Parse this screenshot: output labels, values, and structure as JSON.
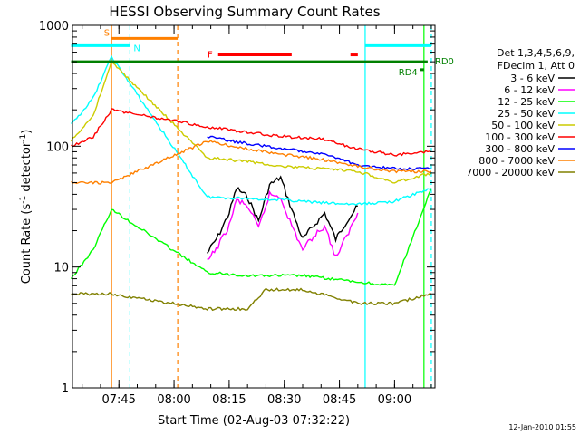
{
  "chart_data": {
    "type": "line",
    "title": "HESSI Observing Summary Count Rates",
    "xlabel": "Start Time (02-Aug-03 07:32:22)",
    "ylabel": "Count Rate (s⁻¹ detector⁻¹)",
    "ylabel_parts": {
      "main": "Count Rate (s",
      "sup1": "-1",
      "mid": " detector",
      "sup2": "-1",
      "end": ")"
    },
    "yscale": "log",
    "ylim": [
      1,
      1000
    ],
    "xlim": [
      "07:32:22",
      "09:11:00"
    ],
    "x_ticks": [
      "07:45",
      "08:00",
      "08:15",
      "08:30",
      "08:45",
      "09:00"
    ],
    "y_ticks": [
      "1",
      "10",
      "100",
      "1000"
    ],
    "legend_header": [
      "Det 1,3,4,5,6,9,",
      "FDecim 1, Att 0"
    ],
    "legend_position": "right",
    "series": [
      {
        "name": "3 - 6 keV",
        "color": "#000000",
        "x": [
          "08:09",
          "08:12",
          "08:15",
          "08:17",
          "08:20",
          "08:23",
          "08:26",
          "08:29",
          "08:32",
          "08:35",
          "08:38",
          "08:41",
          "08:44",
          "08:47",
          "08:50"
        ],
        "y": [
          13,
          18,
          28,
          45,
          38,
          24,
          48,
          55,
          30,
          17,
          22,
          28,
          17,
          24,
          32
        ]
      },
      {
        "name": "6 - 12 keV",
        "color": "#ff00ff",
        "x": [
          "08:09",
          "08:12",
          "08:15",
          "08:17",
          "08:20",
          "08:23",
          "08:26",
          "08:29",
          "08:32",
          "08:35",
          "08:38",
          "08:41",
          "08:44",
          "08:47",
          "08:50"
        ],
        "y": [
          11,
          15,
          22,
          36,
          32,
          21,
          40,
          38,
          22,
          14,
          18,
          22,
          12,
          18,
          28
        ]
      },
      {
        "name": "12 - 25 keV",
        "color": "#00ff00",
        "x": [
          "07:32",
          "07:38",
          "07:43",
          "08:09",
          "08:20",
          "08:35",
          "08:50",
          "09:00",
          "09:10"
        ],
        "y": [
          8,
          14,
          30,
          9,
          8.5,
          8.5,
          7.5,
          7,
          45
        ]
      },
      {
        "name": "25 - 50 keV",
        "color": "#00ffff",
        "x": [
          "07:32",
          "07:38",
          "07:43",
          "08:09",
          "08:20",
          "08:30",
          "08:40",
          "08:50",
          "09:00",
          "09:10"
        ],
        "y": [
          150,
          250,
          550,
          38,
          37,
          36,
          34,
          33,
          35,
          45
        ]
      },
      {
        "name": "50 - 100 keV",
        "color": "#cccc00",
        "x": [
          "07:32",
          "07:38",
          "07:43",
          "08:09",
          "08:20",
          "08:30",
          "08:40",
          "08:50",
          "09:00",
          "09:10"
        ],
        "y": [
          110,
          180,
          500,
          80,
          75,
          68,
          65,
          62,
          50,
          60
        ]
      },
      {
        "name": "100 - 300 keV",
        "color": "#ff0000",
        "x": [
          "07:32",
          "07:38",
          "07:43",
          "08:09",
          "08:20",
          "08:30",
          "08:40",
          "08:50",
          "09:00",
          "09:10"
        ],
        "y": [
          100,
          120,
          200,
          145,
          130,
          120,
          115,
          95,
          85,
          90
        ]
      },
      {
        "name": "300 - 800 keV",
        "color": "#0000ff",
        "x": [
          "08:09",
          "08:20",
          "08:30",
          "08:40",
          "08:50",
          "09:00",
          "09:10"
        ],
        "y": [
          120,
          105,
          95,
          88,
          70,
          65,
          65
        ]
      },
      {
        "name": "800 - 7000 keV",
        "color": "#ff8000",
        "x": [
          "07:32",
          "07:43",
          "08:09",
          "08:20",
          "08:30",
          "08:40",
          "08:50",
          "09:00",
          "09:10"
        ],
        "y": [
          50,
          50,
          110,
          95,
          85,
          78,
          68,
          62,
          62
        ]
      },
      {
        "name": "7000 - 20000 keV",
        "color": "#808000",
        "x": [
          "07:32",
          "07:43",
          "08:09",
          "08:20",
          "08:25",
          "08:35",
          "08:45",
          "08:50",
          "09:00",
          "09:10"
        ],
        "y": [
          6,
          6,
          4.5,
          4.5,
          6.5,
          6.5,
          5.5,
          5,
          5,
          6
        ]
      }
    ],
    "flags": [
      {
        "label": "S",
        "color": "#ff8000",
        "x_start": "07:43",
        "x_end": "08:01",
        "level": 780
      },
      {
        "label": "N",
        "color": "#00ffff",
        "x_start": "07:32",
        "x_end": "07:48",
        "level": 680
      },
      {
        "label": "F",
        "color": "#ff0000",
        "x_start": "08:12",
        "x_end": "08:32",
        "level": 570
      },
      {
        "label": "",
        "color": "#ff0000",
        "x_start": "08:48",
        "x_end": "08:50",
        "level": 570
      },
      {
        "label": "RD0",
        "color": "#008000",
        "x_start": "07:32",
        "x_end": "09:09",
        "level": 500
      },
      {
        "label": "",
        "color": "#00ffff",
        "x_start": "08:52",
        "x_end": "09:10",
        "level": 680
      },
      {
        "label": "RD4",
        "color": "#008000",
        "x_start": "09:07",
        "x_end": "09:08",
        "level": 430
      }
    ],
    "vlines": [
      {
        "x": "07:43",
        "color": "#ff8000",
        "style": "solid"
      },
      {
        "x": "07:48",
        "color": "#00ffff",
        "style": "dash"
      },
      {
        "x": "08:01",
        "color": "#ff8000",
        "style": "dash"
      },
      {
        "x": "08:52",
        "color": "#00ffff",
        "style": "solid"
      },
      {
        "x": "09:08",
        "color": "#00ff00",
        "style": "solid"
      },
      {
        "x": "09:10",
        "color": "#00ffff",
        "style": "dash"
      }
    ],
    "timestamp": "12-Jan-2010 01:55"
  }
}
